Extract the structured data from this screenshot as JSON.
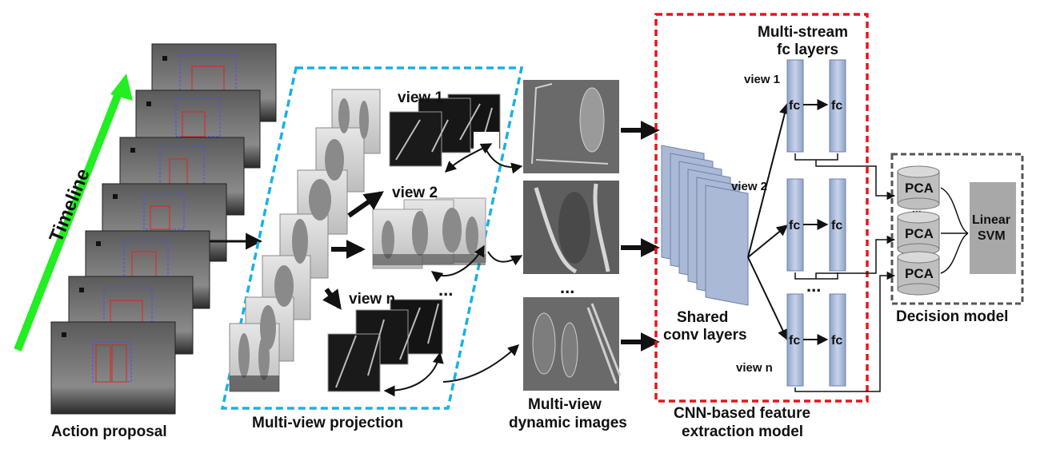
{
  "labels": {
    "timeline": "Timeline",
    "action_proposal": "Action proposal",
    "multi_view_projection": "Multi-view projection",
    "multi_view_dynamic_images_1": "Multi-view",
    "multi_view_dynamic_images_2": "dynamic images",
    "cnn_model_1": "CNN-based feature",
    "cnn_model_2": "extraction model",
    "decision_model": "Decision model",
    "shared_conv_1": "Shared",
    "shared_conv_2": "conv layers",
    "multi_stream_1": "Multi-stream",
    "multi_stream_2": "fc layers",
    "linear_svm_1": "Linear",
    "linear_svm_2": "SVM"
  },
  "projection_views": [
    "view 1",
    "view 2",
    "view n"
  ],
  "stream_views": [
    "view 1",
    "view 2",
    "view n"
  ],
  "fc_label": "fc",
  "pca_label": "PCA",
  "ellipsis": "...",
  "colors": {
    "timeline_arrow": "#22ee22",
    "projection_border": "#1ab0e8",
    "cnn_border": "#e8141e",
    "decision_border": "#555555",
    "layer_fill": "#a9b9d6",
    "layer_stroke": "#7d8fb3",
    "pca_fill": "#bfbfbf",
    "svm_fill": "#a8a8a8"
  }
}
